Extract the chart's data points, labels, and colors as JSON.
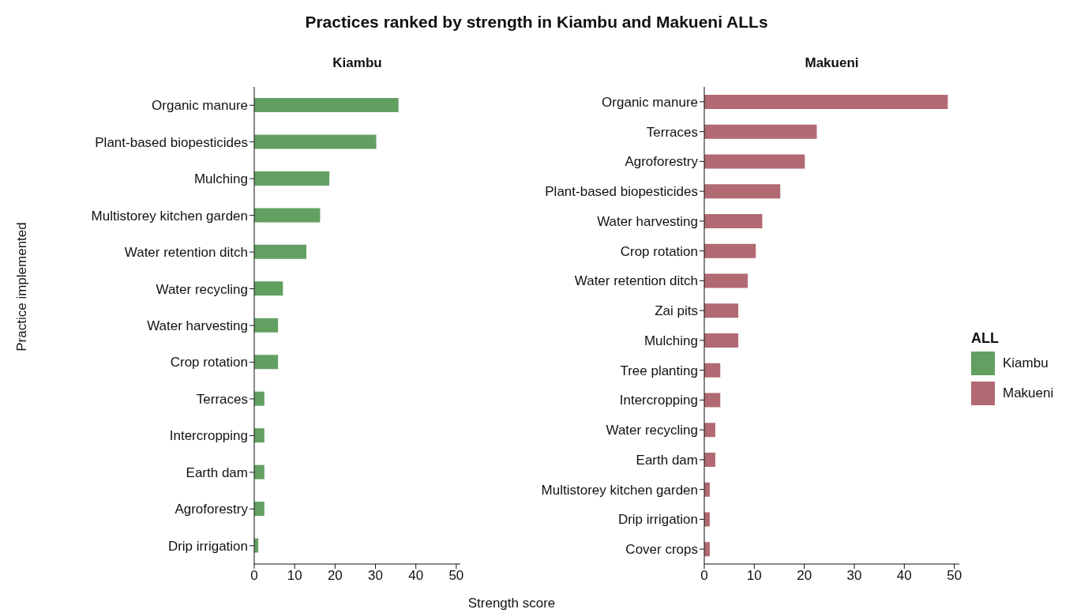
{
  "chart_data": [
    {
      "type": "bar",
      "orientation": "horizontal",
      "title": "Practices ranked by strength in Kiambu and Makueni ALLs",
      "subtitle": "Kiambu",
      "xlabel": "Strength score",
      "ylabel": "Practice implemented",
      "grid": false,
      "legend": "right",
      "categories": [
        "Organic manure",
        "Plant-based biopesticides",
        "Mulching",
        "Multistorey kitchen garden ",
        "Water retention ditch",
        "Water recycling",
        "Water harvesting",
        "Crop rotation",
        "Terraces",
        "Intercropping",
        "Earth dam",
        "Agroforestry",
        "Drip irrigation"
      ],
      "series": [
        {
          "name": "Kiambu",
          "color": "#62a062",
          "values": [
            35.7,
            30.2,
            18.6,
            16.3,
            12.9,
            7.1,
            5.9,
            5.9,
            2.5,
            2.5,
            2.5,
            2.5,
            1.0
          ]
        }
      ],
      "xlim": [
        0,
        51
      ],
      "xticks": [
        0,
        10,
        20,
        30,
        40,
        50
      ]
    },
    {
      "type": "bar",
      "orientation": "horizontal",
      "subtitle": "Makueni",
      "grid": false,
      "legend": "right",
      "legend_title": "ALL",
      "categories": [
        "Organic manure",
        "Terraces",
        "Agroforestry",
        "Plant-based biopesticides",
        "Water harvesting",
        "Crop rotation",
        "Water retention ditch",
        "Zai pits",
        "Mulching",
        "Tree planting",
        "Intercropping",
        "Water recycling",
        "Earth dam",
        "Multistorey kitchen garden",
        "Drip irrigation",
        "Cover crops"
      ],
      "series": [
        {
          "name": "Makueni",
          "color": "#b16a72",
          "values": [
            48.7,
            22.5,
            20.1,
            15.2,
            11.6,
            10.3,
            8.7,
            6.8,
            6.8,
            3.2,
            3.2,
            2.2,
            2.2,
            1.1,
            1.1,
            1.1
          ]
        }
      ],
      "xlim": [
        0,
        51
      ],
      "xticks": [
        0,
        10,
        20,
        30,
        40,
        50
      ]
    }
  ]
}
